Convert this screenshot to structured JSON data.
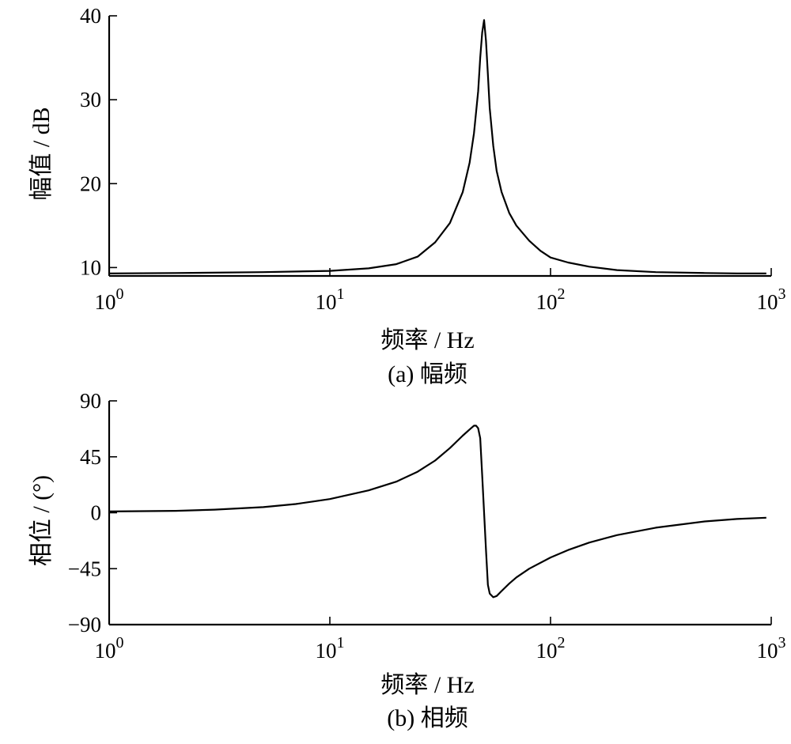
{
  "chart_data": [
    {
      "type": "line",
      "caption": "(a) 幅频",
      "xlabel": "频率 / Hz",
      "ylabel": "幅值 / dB",
      "x_scale": "log",
      "xlim": [
        1,
        1000
      ],
      "ylim": [
        9,
        40
      ],
      "x_ticks": [
        1,
        10,
        100,
        1000
      ],
      "x_tick_labels": [
        {
          "base": "10",
          "exp": "0"
        },
        {
          "base": "10",
          "exp": "1"
        },
        {
          "base": "10",
          "exp": "2"
        },
        {
          "base": "10",
          "exp": "3"
        }
      ],
      "y_ticks": [
        10,
        20,
        30,
        40
      ],
      "y_tick_labels": [
        "10",
        "20",
        "30",
        "40"
      ],
      "grid": false,
      "series": [
        {
          "x": [
            1,
            2,
            5,
            10,
            15,
            20,
            25,
            30,
            35,
            40,
            43,
            45,
            47,
            48,
            49,
            50,
            51,
            52,
            53,
            55,
            57,
            60,
            65,
            70,
            80,
            90,
            100,
            120,
            150,
            200,
            300,
            500,
            700,
            950
          ],
          "y": [
            9.3,
            9.35,
            9.45,
            9.6,
            9.9,
            10.4,
            11.3,
            13.0,
            15.3,
            19.0,
            22.5,
            26.0,
            31.0,
            35.0,
            38.0,
            39.5,
            37.0,
            33.0,
            29.0,
            24.5,
            21.5,
            19.0,
            16.5,
            15.0,
            13.2,
            12.0,
            11.2,
            10.6,
            10.1,
            9.7,
            9.45,
            9.35,
            9.3,
            9.3
          ]
        }
      ]
    },
    {
      "type": "line",
      "caption": "(b) 相频",
      "xlabel": "频率 / Hz",
      "ylabel": "相位 / (°)",
      "x_scale": "log",
      "xlim": [
        1,
        1000
      ],
      "ylim": [
        -90,
        90
      ],
      "x_ticks": [
        1,
        10,
        100,
        1000
      ],
      "x_tick_labels": [
        {
          "base": "10",
          "exp": "0"
        },
        {
          "base": "10",
          "exp": "1"
        },
        {
          "base": "10",
          "exp": "2"
        },
        {
          "base": "10",
          "exp": "3"
        }
      ],
      "y_ticks": [
        90,
        45,
        0,
        -45,
        -90
      ],
      "y_tick_labels": [
        "90",
        "45",
        "0",
        "−45",
        "−90"
      ],
      "grid": false,
      "series": [
        {
          "x": [
            1,
            2,
            3,
            5,
            7,
            10,
            15,
            20,
            25,
            30,
            35,
            40,
            43,
            45,
            46,
            47,
            48,
            49,
            50,
            51,
            52,
            53,
            55,
            57,
            60,
            65,
            70,
            80,
            100,
            120,
            150,
            200,
            300,
            500,
            700,
            950
          ],
          "y": [
            1,
            1.5,
            2.5,
            4.5,
            7,
            11,
            18,
            25,
            33,
            42,
            52,
            62,
            67,
            70,
            70,
            68,
            60,
            30,
            0,
            -30,
            -58,
            -65,
            -68,
            -67,
            -63,
            -57,
            -52,
            -45,
            -36,
            -30,
            -24,
            -18,
            -12,
            -7,
            -5,
            -4
          ]
        }
      ]
    }
  ]
}
